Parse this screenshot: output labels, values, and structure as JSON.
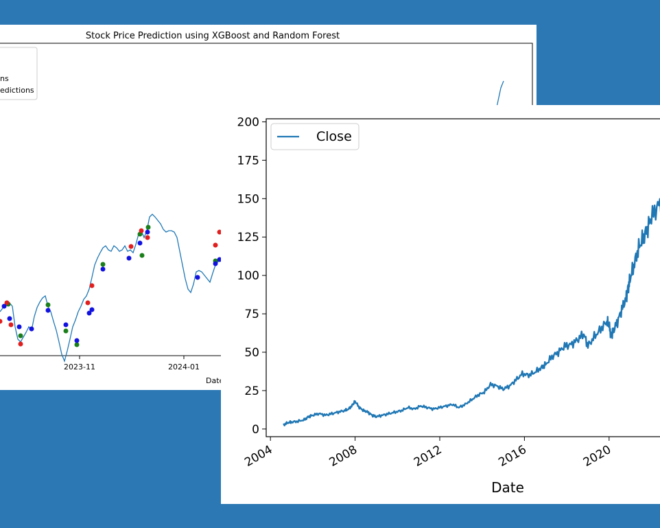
{
  "back_chart": {
    "title": "Stock Price Prediction using XGBoost and Random Forest",
    "xlabel": "Date",
    "ticks": [
      "2023-11",
      "2024-01"
    ],
    "legend": [
      "ns",
      "edictions"
    ],
    "colors": {
      "line": "#1f77b4",
      "actual": "#1a7f1a",
      "xgb": "#e01f1f",
      "rf": "#1212e0"
    },
    "chart_data": {
      "type": "line",
      "line": [
        [
          0,
          418
        ],
        [
          6,
          410
        ],
        [
          12,
          403
        ],
        [
          18,
          410
        ],
        [
          22,
          440
        ],
        [
          26,
          458
        ],
        [
          30,
          462
        ],
        [
          34,
          455
        ],
        [
          38,
          448
        ],
        [
          42,
          440
        ],
        [
          46,
          445
        ],
        [
          50,
          425
        ],
        [
          54,
          412
        ],
        [
          58,
          404
        ],
        [
          62,
          398
        ],
        [
          66,
          395
        ],
        [
          70,
          410
        ],
        [
          74,
          418
        ],
        [
          78,
          432
        ],
        [
          82,
          445
        ],
        [
          86,
          462
        ],
        [
          90,
          480
        ],
        [
          94,
          490
        ],
        [
          98,
          475
        ],
        [
          102,
          458
        ],
        [
          106,
          440
        ],
        [
          110,
          430
        ],
        [
          114,
          418
        ],
        [
          118,
          410
        ],
        [
          122,
          400
        ],
        [
          126,
          395
        ],
        [
          130,
          385
        ],
        [
          134,
          368
        ],
        [
          138,
          350
        ],
        [
          142,
          340
        ],
        [
          146,
          332
        ],
        [
          150,
          325
        ],
        [
          154,
          322
        ],
        [
          158,
          328
        ],
        [
          162,
          330
        ],
        [
          166,
          322
        ],
        [
          170,
          325
        ],
        [
          174,
          330
        ],
        [
          178,
          328
        ],
        [
          182,
          322
        ],
        [
          186,
          330
        ],
        [
          190,
          328
        ],
        [
          194,
          332
        ],
        [
          198,
          320
        ],
        [
          202,
          305
        ],
        [
          206,
          300
        ],
        [
          210,
          310
        ],
        [
          214,
          300
        ],
        [
          218,
          280
        ],
        [
          222,
          276
        ],
        [
          226,
          280
        ],
        [
          230,
          285
        ],
        [
          234,
          290
        ],
        [
          238,
          298
        ],
        [
          242,
          302
        ],
        [
          246,
          300
        ],
        [
          250,
          300
        ],
        [
          254,
          302
        ],
        [
          258,
          310
        ],
        [
          262,
          330
        ],
        [
          266,
          350
        ],
        [
          270,
          370
        ],
        [
          274,
          385
        ],
        [
          278,
          390
        ],
        [
          282,
          378
        ],
        [
          286,
          360
        ],
        [
          290,
          358
        ],
        [
          294,
          360
        ],
        [
          298,
          365
        ],
        [
          302,
          370
        ],
        [
          306,
          375
        ],
        [
          310,
          362
        ],
        [
          314,
          350
        ],
        [
          318,
          345
        ],
        [
          322,
          340
        ]
      ],
      "red": [
        [
          0,
          432
        ],
        [
          10,
          405
        ],
        [
          16,
          437
        ],
        [
          30,
          465
        ],
        [
          128,
          405
        ],
        [
          134,
          380
        ],
        [
          191,
          323
        ],
        [
          206,
          300
        ],
        [
          215,
          310
        ],
        [
          314,
          321
        ],
        [
          320,
          302
        ]
      ],
      "green": [
        [
          12,
          407
        ],
        [
          30,
          453
        ],
        [
          70,
          408
        ],
        [
          96,
          446
        ],
        [
          112,
          466
        ],
        [
          150,
          349
        ],
        [
          207,
          336
        ],
        [
          216,
          295
        ],
        [
          204,
          305
        ],
        [
          314,
          344
        ]
      ],
      "blue": [
        [
          6,
          410
        ],
        [
          14,
          428
        ],
        [
          28,
          440
        ],
        [
          46,
          443
        ],
        [
          70,
          416
        ],
        [
          96,
          437
        ],
        [
          112,
          460
        ],
        [
          130,
          420
        ],
        [
          134,
          415
        ],
        [
          150,
          356
        ],
        [
          188,
          340
        ],
        [
          204,
          318
        ],
        [
          215,
          302
        ],
        [
          288,
          368
        ],
        [
          314,
          348
        ],
        [
          320,
          342
        ]
      ],
      "right_line": [
        [
          684,
          150
        ],
        [
          690,
          152
        ],
        [
          702,
          160
        ],
        [
          712,
          153
        ],
        [
          718,
          148
        ],
        [
          724,
          120
        ],
        [
          730,
          92
        ],
        [
          734,
          82
        ]
      ],
      "right_red": [
        [
          725,
          125
        ]
      ],
      "right_blue": [
        [
          725,
          142
        ]
      ]
    }
  },
  "front_chart": {
    "legend_label": "Close",
    "xlabel": "Date",
    "line_color": "#1f77b4",
    "chart_data": {
      "type": "line",
      "xlim": [
        2003.8,
        2022.6
      ],
      "ylim": [
        -5,
        202
      ],
      "yticks": [
        0,
        25,
        50,
        75,
        100,
        125,
        150,
        175,
        200
      ],
      "xticks": [
        2004,
        2008,
        2012,
        2016,
        2020
      ],
      "series": [
        {
          "name": "Close",
          "points": [
            [
              2004.6,
              2.5
            ],
            [
              2004.8,
              4
            ],
            [
              2005.0,
              4.5
            ],
            [
              2005.3,
              5
            ],
            [
              2005.6,
              6
            ],
            [
              2005.8,
              8
            ],
            [
              2006.0,
              9
            ],
            [
              2006.3,
              10
            ],
            [
              2006.6,
              9
            ],
            [
              2006.9,
              10
            ],
            [
              2007.2,
              11
            ],
            [
              2007.5,
              12
            ],
            [
              2007.7,
              13
            ],
            [
              2007.9,
              16
            ],
            [
              2008.0,
              18
            ],
            [
              2008.2,
              14
            ],
            [
              2008.4,
              12
            ],
            [
              2008.6,
              11
            ],
            [
              2008.8,
              9
            ],
            [
              2009.0,
              8
            ],
            [
              2009.3,
              9
            ],
            [
              2009.6,
              10
            ],
            [
              2009.9,
              11
            ],
            [
              2010.2,
              12
            ],
            [
              2010.5,
              14
            ],
            [
              2010.8,
              13
            ],
            [
              2011.1,
              15
            ],
            [
              2011.4,
              14
            ],
            [
              2011.7,
              13
            ],
            [
              2012.0,
              14
            ],
            [
              2012.3,
              15
            ],
            [
              2012.6,
              16
            ],
            [
              2012.9,
              14
            ],
            [
              2013.2,
              16
            ],
            [
              2013.5,
              19
            ],
            [
              2013.8,
              22
            ],
            [
              2014.1,
              24
            ],
            [
              2014.4,
              29
            ],
            [
              2014.7,
              28
            ],
            [
              2015.0,
              26
            ],
            [
              2015.3,
              28
            ],
            [
              2015.6,
              32
            ],
            [
              2015.9,
              36
            ],
            [
              2016.2,
              35
            ],
            [
              2016.5,
              37
            ],
            [
              2016.8,
              40
            ],
            [
              2017.0,
              42
            ],
            [
              2017.3,
              47
            ],
            [
              2017.6,
              50
            ],
            [
              2017.9,
              54
            ],
            [
              2018.2,
              55
            ],
            [
              2018.5,
              58
            ],
            [
              2018.8,
              62
            ],
            [
              2019.0,
              54
            ],
            [
              2019.3,
              60
            ],
            [
              2019.6,
              65
            ],
            [
              2019.9,
              70
            ],
            [
              2020.0,
              68
            ],
            [
              2020.1,
              60
            ],
            [
              2020.2,
              64
            ],
            [
              2020.4,
              70
            ],
            [
              2020.6,
              78
            ],
            [
              2020.8,
              85
            ],
            [
              2020.9,
              92
            ],
            [
              2021.0,
              98
            ],
            [
              2021.2,
              108
            ],
            [
              2021.4,
              118
            ],
            [
              2021.6,
              124
            ],
            [
              2021.8,
              130
            ],
            [
              2022.0,
              138
            ],
            [
              2022.3,
              145
            ],
            [
              2022.6,
              150
            ]
          ]
        }
      ]
    }
  }
}
